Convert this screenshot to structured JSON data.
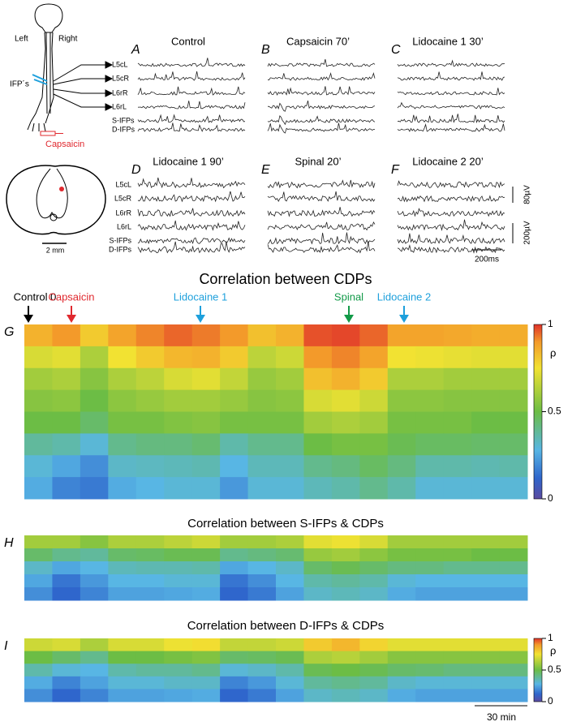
{
  "diagram": {
    "left": "Left",
    "right": "Right",
    "ifp": "IFP´s",
    "stimulus": "Capsaicin",
    "scale": "2 mm"
  },
  "channels": [
    "L5cL",
    "L5cR",
    "L6rR",
    "L6rL",
    "S-IFPs",
    "D-IFPs"
  ],
  "panels": [
    {
      "letter": "A",
      "title": "Control"
    },
    {
      "letter": "B",
      "title": "Capsaicin 70’"
    },
    {
      "letter": "C",
      "title": "Lidocaine 1 30’"
    },
    {
      "letter": "D",
      "title": "Lidocaine 1 90’"
    },
    {
      "letter": "E",
      "title": "Spinal 20’"
    },
    {
      "letter": "F",
      "title": "Lidocaine 2 20’"
    }
  ],
  "scale_bars": {
    "amp1": "80µV",
    "amp2": "200µV",
    "time": "200ms",
    "minutes": "30 min"
  },
  "events": [
    {
      "label": "Control 0",
      "color": "#000000"
    },
    {
      "label": "Capsaicin",
      "color": "#e0282e"
    },
    {
      "label": "Lidocaine 1",
      "color": "#1ea0dc"
    },
    {
      "label": "Spinal",
      "color": "#129a48"
    },
    {
      "label": "Lidocaine 2",
      "color": "#1ea0dc"
    }
  ],
  "colorbar": {
    "ticks": [
      1,
      0.5,
      0
    ],
    "symbol": "ρ",
    "range": [
      0,
      1
    ]
  },
  "heatmaps": [
    {
      "letter": "G",
      "title": "Correlation between CDPs",
      "values": [
        [
          0.85,
          0.9,
          0.8,
          0.88,
          0.92,
          0.95,
          0.93,
          0.9,
          0.82,
          0.85,
          0.97,
          0.98,
          0.95,
          0.88,
          0.88,
          0.87,
          0.86,
          0.86
        ],
        [
          0.7,
          0.72,
          0.62,
          0.75,
          0.8,
          0.84,
          0.85,
          0.8,
          0.65,
          0.68,
          0.9,
          0.92,
          0.88,
          0.75,
          0.74,
          0.73,
          0.72,
          0.72
        ],
        [
          0.6,
          0.62,
          0.55,
          0.62,
          0.65,
          0.7,
          0.72,
          0.66,
          0.58,
          0.6,
          0.82,
          0.85,
          0.8,
          0.62,
          0.62,
          0.6,
          0.6,
          0.6
        ],
        [
          0.55,
          0.56,
          0.5,
          0.56,
          0.58,
          0.6,
          0.6,
          0.58,
          0.55,
          0.56,
          0.7,
          0.72,
          0.68,
          0.56,
          0.56,
          0.55,
          0.55,
          0.55
        ],
        [
          0.5,
          0.5,
          0.45,
          0.52,
          0.52,
          0.54,
          0.55,
          0.52,
          0.52,
          0.52,
          0.6,
          0.62,
          0.6,
          0.52,
          0.52,
          0.52,
          0.5,
          0.5
        ],
        [
          0.38,
          0.36,
          0.3,
          0.4,
          0.42,
          0.42,
          0.44,
          0.36,
          0.4,
          0.4,
          0.5,
          0.52,
          0.52,
          0.48,
          0.46,
          0.46,
          0.45,
          0.45
        ],
        [
          0.3,
          0.25,
          0.2,
          0.32,
          0.33,
          0.34,
          0.35,
          0.28,
          0.34,
          0.34,
          0.4,
          0.42,
          0.46,
          0.42,
          0.36,
          0.36,
          0.35,
          0.36
        ],
        [
          0.26,
          0.18,
          0.16,
          0.26,
          0.28,
          0.3,
          0.3,
          0.22,
          0.3,
          0.3,
          0.34,
          0.36,
          0.4,
          0.36,
          0.3,
          0.3,
          0.3,
          0.3
        ]
      ]
    },
    {
      "letter": "H",
      "title": "Correlation between S-IFPs & CDPs",
      "values": [
        [
          0.6,
          0.6,
          0.55,
          0.62,
          0.62,
          0.65,
          0.68,
          0.6,
          0.6,
          0.62,
          0.72,
          0.74,
          0.7,
          0.6,
          0.6,
          0.6,
          0.6,
          0.6
        ],
        [
          0.45,
          0.4,
          0.38,
          0.45,
          0.46,
          0.48,
          0.48,
          0.4,
          0.42,
          0.44,
          0.58,
          0.6,
          0.56,
          0.52,
          0.52,
          0.52,
          0.5,
          0.5
        ],
        [
          0.32,
          0.25,
          0.28,
          0.34,
          0.35,
          0.35,
          0.36,
          0.25,
          0.28,
          0.32,
          0.45,
          0.48,
          0.45,
          0.42,
          0.42,
          0.4,
          0.4,
          0.4
        ],
        [
          0.25,
          0.15,
          0.22,
          0.28,
          0.28,
          0.3,
          0.3,
          0.15,
          0.2,
          0.28,
          0.36,
          0.38,
          0.36,
          0.3,
          0.28,
          0.28,
          0.28,
          0.28
        ],
        [
          0.2,
          0.12,
          0.18,
          0.24,
          0.24,
          0.25,
          0.26,
          0.12,
          0.16,
          0.24,
          0.32,
          0.34,
          0.32,
          0.26,
          0.24,
          0.24,
          0.24,
          0.24
        ]
      ]
    },
    {
      "letter": "I",
      "title": "Correlation between D-IFPs & CDPs",
      "values": [
        [
          0.68,
          0.7,
          0.62,
          0.7,
          0.7,
          0.74,
          0.76,
          0.66,
          0.66,
          0.68,
          0.8,
          0.84,
          0.78,
          0.72,
          0.72,
          0.72,
          0.72,
          0.72
        ],
        [
          0.5,
          0.45,
          0.4,
          0.5,
          0.5,
          0.52,
          0.54,
          0.45,
          0.46,
          0.48,
          0.62,
          0.64,
          0.6,
          0.55,
          0.55,
          0.55,
          0.55,
          0.55
        ],
        [
          0.36,
          0.3,
          0.28,
          0.36,
          0.38,
          0.38,
          0.4,
          0.3,
          0.32,
          0.36,
          0.48,
          0.5,
          0.48,
          0.45,
          0.44,
          0.42,
          0.42,
          0.42
        ],
        [
          0.26,
          0.18,
          0.24,
          0.3,
          0.3,
          0.32,
          0.32,
          0.18,
          0.22,
          0.3,
          0.38,
          0.4,
          0.38,
          0.32,
          0.3,
          0.3,
          0.3,
          0.3
        ],
        [
          0.2,
          0.12,
          0.18,
          0.24,
          0.24,
          0.25,
          0.26,
          0.12,
          0.16,
          0.24,
          0.32,
          0.34,
          0.32,
          0.26,
          0.24,
          0.24,
          0.24,
          0.24
        ]
      ]
    }
  ]
}
